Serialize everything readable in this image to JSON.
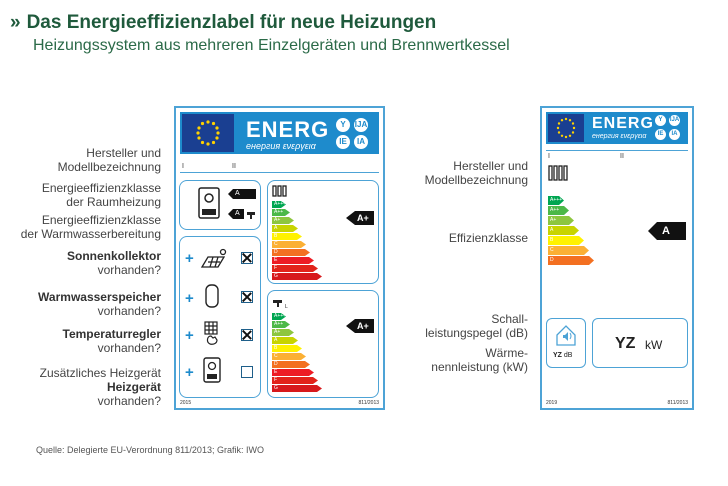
{
  "header": {
    "title": "Das Energieeffizienzlabel für neue Heizungen",
    "subtitle": "Heizungssystem aus mehreren Einzelgeräten und Brennwertkessel"
  },
  "left_labels": {
    "manufacturer_1": "Hersteller und",
    "manufacturer_2": "Modellbezeichnung",
    "space_heating_1": "Energieeffizienzklasse",
    "space_heating_2": "der Raumheizung",
    "water_heating_1": "Energieeffizienzklasse",
    "water_heating_2": "der Warmwasserbereitung",
    "solar_1": "Sonnenkollektor",
    "solar_2": "vorhanden?",
    "storage_1": "Warmwasserspeicher",
    "storage_2": "vorhanden?",
    "temp_1": "Temperaturregler",
    "temp_2": "vorhanden?",
    "extra_1": "Zusätzliches Heizgerät",
    "extra_2": "vorhanden?"
  },
  "package_label": {
    "energ": "ENERG",
    "energ_sub": "енергия ενεργεια",
    "lang_codes": [
      "Y",
      "IJA",
      "IE",
      "IA"
    ],
    "roman": [
      "I",
      "II"
    ],
    "class_chips": [
      "A",
      "A"
    ],
    "rating_heating": "A+",
    "rating_water": "A+",
    "scale": [
      "A+++",
      "A++",
      "A+",
      "A",
      "B",
      "C",
      "D",
      "E",
      "F",
      "G"
    ],
    "footer_year": "2015",
    "footer_reg": "811/2013",
    "components": [
      {
        "icon": "solar-collector-icon",
        "checked": true
      },
      {
        "icon": "hot-water-storage-icon",
        "checked": true
      },
      {
        "icon": "temperature-control-icon",
        "checked": true
      },
      {
        "icon": "extra-heater-icon",
        "checked": false
      }
    ]
  },
  "right_labels": {
    "manufacturer_1": "Hersteller und",
    "manufacturer_2": "Modellbezeichnung",
    "efficiency": "Effizienzklasse",
    "sound_1": "Schall-",
    "sound_2": "leistungspegel (dB)",
    "power_1": "Wärme-",
    "power_2": "nennleistung (kW)"
  },
  "boiler_label": {
    "energ": "ENERG",
    "energ_sub": "енергия ενεργεια",
    "lang_codes": [
      "Y",
      "IJA",
      "IE",
      "IA"
    ],
    "roman": [
      "I",
      "II"
    ],
    "rating": "A",
    "scale": [
      "A+++",
      "A++",
      "A+",
      "A",
      "B",
      "C",
      "D"
    ],
    "sound_value": "YZ",
    "sound_unit": "dB",
    "power_value": "YZ",
    "power_unit": "kW",
    "footer_year": "2019",
    "footer_reg": "811/2013"
  },
  "colors": {
    "title_green": "#1f5a3c",
    "label_blue": "#1e8bcc",
    "eu_blue": "#1a3f91",
    "scale": [
      "#00a651",
      "#4cb848",
      "#8dc63f",
      "#c8d400",
      "#fff200",
      "#fbb034",
      "#f37021",
      "#ed1c24",
      "#e2231a",
      "#d7191c"
    ]
  },
  "source": "Quelle: Delegierte EU-Verordnung 811/2013; Grafik: IWO"
}
